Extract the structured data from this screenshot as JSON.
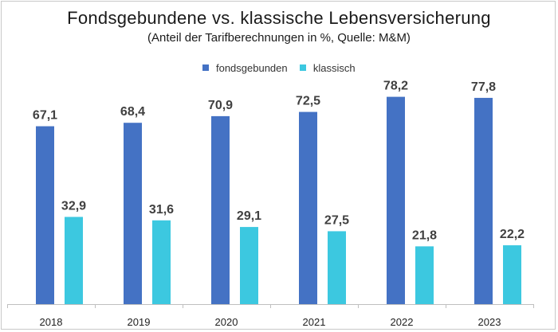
{
  "chart_data": {
    "type": "bar",
    "title": "Fondsgebundene vs. klassische Lebensversicherung",
    "subtitle": "(Anteil der Tarifberechnungen in %, Quelle: M&M)",
    "categories": [
      "2018",
      "2019",
      "2020",
      "2021",
      "2022",
      "2023"
    ],
    "series": [
      {
        "name": "fondsgebunden",
        "color": "#4472c4",
        "values": [
          67.1,
          68.4,
          70.9,
          72.5,
          78.2,
          77.8
        ],
        "labels": [
          "67,1",
          "68,4",
          "70,9",
          "72,5",
          "78,2",
          "77,8"
        ]
      },
      {
        "name": "klassisch",
        "color": "#3cc8e0",
        "values": [
          32.9,
          31.6,
          29.1,
          27.5,
          21.8,
          22.2
        ],
        "labels": [
          "32,9",
          "31,6",
          "29,1",
          "27,5",
          "21,8",
          "22,2"
        ]
      }
    ],
    "ylim": [
      0,
      100
    ],
    "grid": false,
    "legend_position": "top-center",
    "axis_color": "#bfbfbf",
    "label_color": "#404040"
  }
}
